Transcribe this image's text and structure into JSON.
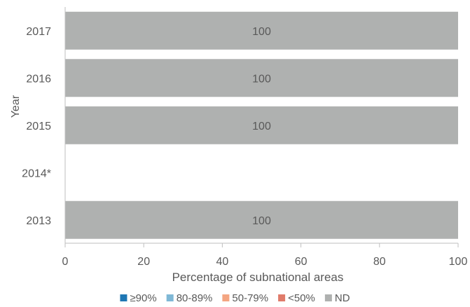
{
  "chart_data": {
    "type": "bar",
    "orientation": "horizontal",
    "stacked": true,
    "xlabel": "Percentage of subnational areas",
    "ylabel": "Year",
    "xlim": [
      0,
      100
    ],
    "xticks": [
      0,
      20,
      40,
      60,
      80,
      100
    ],
    "grid": false,
    "legend_position": "bottom",
    "categories": [
      "2017",
      "2016",
      "2015",
      "2014*",
      "2013"
    ],
    "series": [
      {
        "name": "≥90%",
        "color": "#1f77b4",
        "values": [
          0,
          0,
          0,
          null,
          0
        ]
      },
      {
        "name": "80-89%",
        "color": "#7fb8d6",
        "values": [
          0,
          0,
          0,
          null,
          0
        ]
      },
      {
        "name": "50-79%",
        "color": "#f4a582",
        "values": [
          0,
          0,
          0,
          null,
          0
        ]
      },
      {
        "name": "<50%",
        "color": "#e07b6a",
        "values": [
          0,
          0,
          0,
          null,
          0
        ]
      },
      {
        "name": "ND",
        "color": "#afb1b0",
        "values": [
          100,
          100,
          100,
          null,
          100
        ]
      }
    ]
  }
}
